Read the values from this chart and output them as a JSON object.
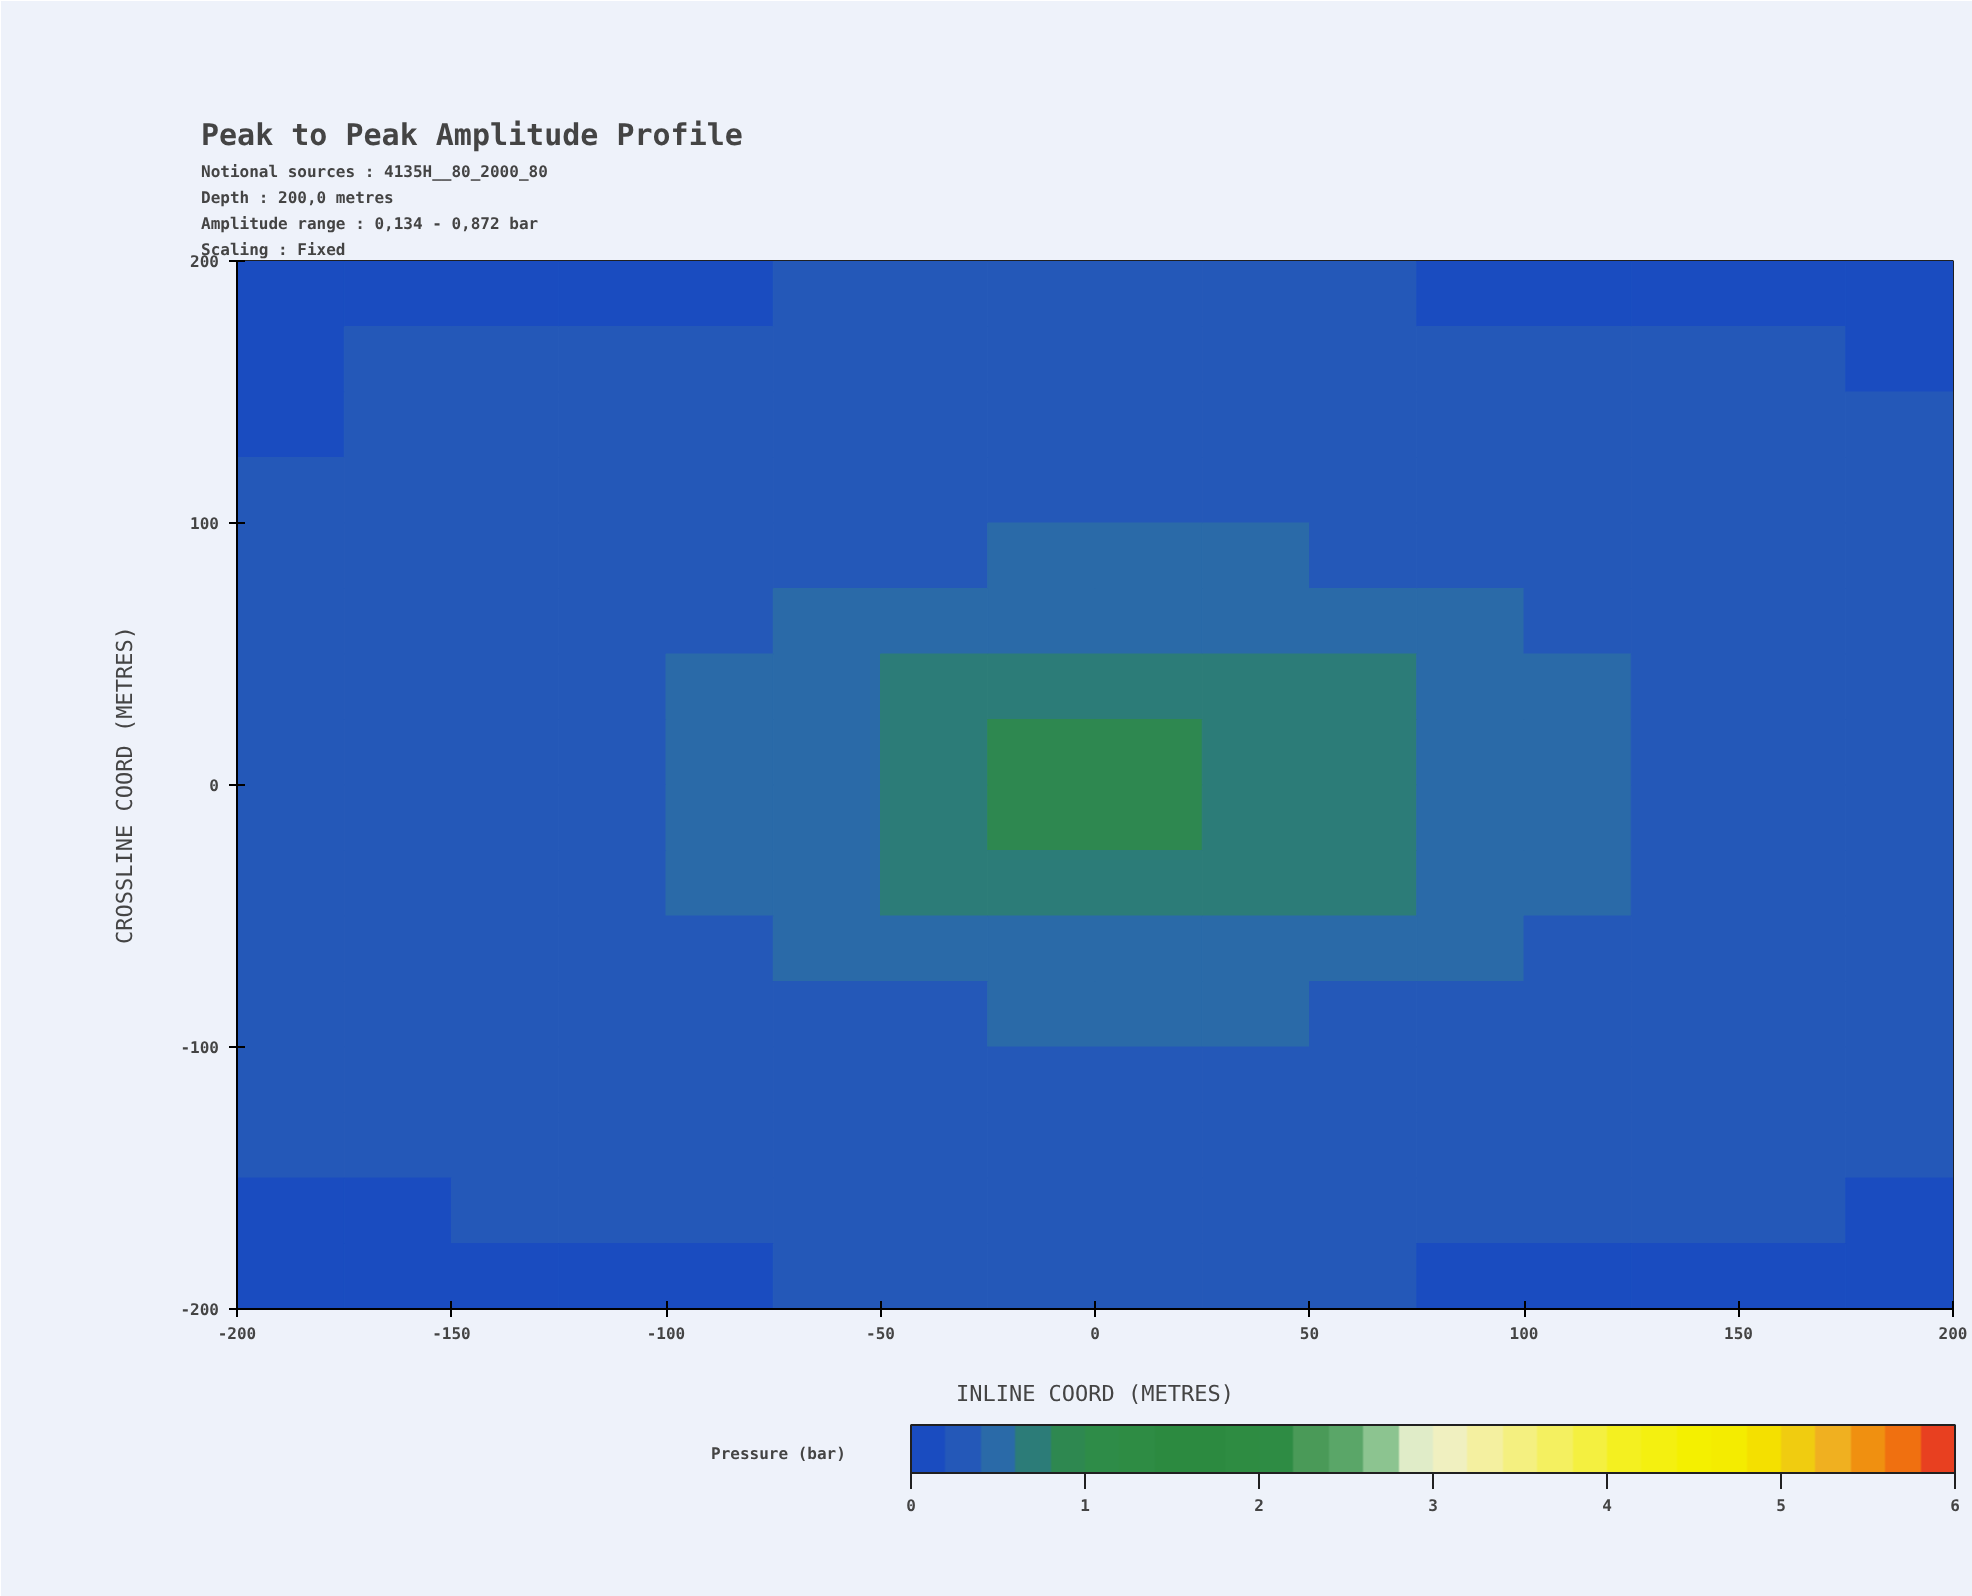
{
  "chart_data": {
    "type": "heatmap",
    "title": "Peak to Peak Amplitude Profile",
    "annotations": [
      "Notional sources : 4135H__80_2000_80",
      "Depth : 200,0 metres",
      "Amplitude range : 0,134 - 0,872 bar",
      "Scaling : Fixed"
    ],
    "xlabel": "INLINE COORD (METRES)",
    "ylabel": "CROSSLINE COORD (METRES)",
    "clabel": "Pressure (bar)",
    "xlim": [
      -200,
      200
    ],
    "xticks": [
      -200,
      -150,
      -100,
      {
        "value": -50,
        "label": "-50"
      },
      0,
      50,
      100,
      150,
      200
    ],
    "ylim": [
      -200,
      200
    ],
    "yticks": [
      -200,
      -100,
      0,
      100,
      200
    ],
    "clim": [
      0,
      6
    ],
    "cticks": [
      0,
      1,
      2,
      3,
      4,
      5,
      6
    ],
    "colors": [
      "#1a4cc0",
      "#2458b8",
      "#2a6aa8",
      "#2c7c78",
      "#2e8850",
      "#2e8c48",
      "#2e8c44",
      "#2c8a40",
      "#2c8a40",
      "#2e8c42",
      "#2e8c44",
      "#4a9a58",
      "#5aa668",
      "#8cc490",
      "#e0ecc8",
      "#f0f0c0",
      "#f4f0a0",
      "#f4f080",
      "#f4f060",
      "#f4f040",
      "#f4f020",
      "#f4f010",
      "#f4f000",
      "#f4ec00",
      "#f4e000",
      "#f0cc10",
      "#f0b020",
      "#f09010",
      "#f07010",
      "#e84020"
    ],
    "cells": [
      [
        0.15,
        0.15,
        0.15,
        0.15,
        0.15,
        0.3,
        0.3,
        0.3,
        0.3,
        0.3,
        0.3,
        0.15,
        0.15,
        0.15,
        0.15,
        0.15
      ],
      [
        0.15,
        0.3,
        0.3,
        0.3,
        0.3,
        0.3,
        0.3,
        0.3,
        0.3,
        0.3,
        0.3,
        0.3,
        0.3,
        0.3,
        0.3,
        0.15
      ],
      [
        0.15,
        0.3,
        0.3,
        0.3,
        0.3,
        0.3,
        0.3,
        0.3,
        0.3,
        0.3,
        0.3,
        0.3,
        0.3,
        0.3,
        0.3,
        0.3
      ],
      [
        0.3,
        0.3,
        0.3,
        0.3,
        0.3,
        0.3,
        0.3,
        0.3,
        0.3,
        0.3,
        0.3,
        0.3,
        0.3,
        0.3,
        0.3,
        0.3
      ],
      [
        0.3,
        0.3,
        0.3,
        0.3,
        0.3,
        0.3,
        0.3,
        0.5,
        0.5,
        0.5,
        0.3,
        0.3,
        0.3,
        0.3,
        0.3,
        0.3
      ],
      [
        0.3,
        0.3,
        0.3,
        0.3,
        0.3,
        0.5,
        0.5,
        0.5,
        0.5,
        0.5,
        0.5,
        0.5,
        0.3,
        0.3,
        0.3,
        0.3
      ],
      [
        0.3,
        0.3,
        0.3,
        0.3,
        0.5,
        0.5,
        0.7,
        0.7,
        0.7,
        0.7,
        0.7,
        0.5,
        0.5,
        0.3,
        0.3,
        0.3
      ],
      [
        0.3,
        0.3,
        0.3,
        0.3,
        0.5,
        0.5,
        0.7,
        0.85,
        0.85,
        0.7,
        0.7,
        0.5,
        0.5,
        0.3,
        0.3,
        0.3
      ],
      [
        0.3,
        0.3,
        0.3,
        0.3,
        0.5,
        0.5,
        0.7,
        0.85,
        0.85,
        0.7,
        0.7,
        0.5,
        0.5,
        0.3,
        0.3,
        0.3
      ],
      [
        0.3,
        0.3,
        0.3,
        0.3,
        0.5,
        0.5,
        0.7,
        0.7,
        0.7,
        0.7,
        0.7,
        0.5,
        0.5,
        0.3,
        0.3,
        0.3
      ],
      [
        0.3,
        0.3,
        0.3,
        0.3,
        0.3,
        0.5,
        0.5,
        0.5,
        0.5,
        0.5,
        0.5,
        0.5,
        0.3,
        0.3,
        0.3,
        0.3
      ],
      [
        0.3,
        0.3,
        0.3,
        0.3,
        0.3,
        0.3,
        0.3,
        0.5,
        0.5,
        0.5,
        0.3,
        0.3,
        0.3,
        0.3,
        0.3,
        0.3
      ],
      [
        0.3,
        0.3,
        0.3,
        0.3,
        0.3,
        0.3,
        0.3,
        0.3,
        0.3,
        0.3,
        0.3,
        0.3,
        0.3,
        0.3,
        0.3,
        0.3
      ],
      [
        0.3,
        0.3,
        0.3,
        0.3,
        0.3,
        0.3,
        0.3,
        0.3,
        0.3,
        0.3,
        0.3,
        0.3,
        0.3,
        0.3,
        0.3,
        0.3
      ],
      [
        0.15,
        0.15,
        0.3,
        0.3,
        0.3,
        0.3,
        0.3,
        0.3,
        0.3,
        0.3,
        0.3,
        0.3,
        0.3,
        0.3,
        0.3,
        0.15
      ],
      [
        0.15,
        0.15,
        0.15,
        0.15,
        0.15,
        0.3,
        0.3,
        0.3,
        0.3,
        0.3,
        0.3,
        0.15,
        0.15,
        0.15,
        0.15,
        0.15
      ]
    ]
  }
}
